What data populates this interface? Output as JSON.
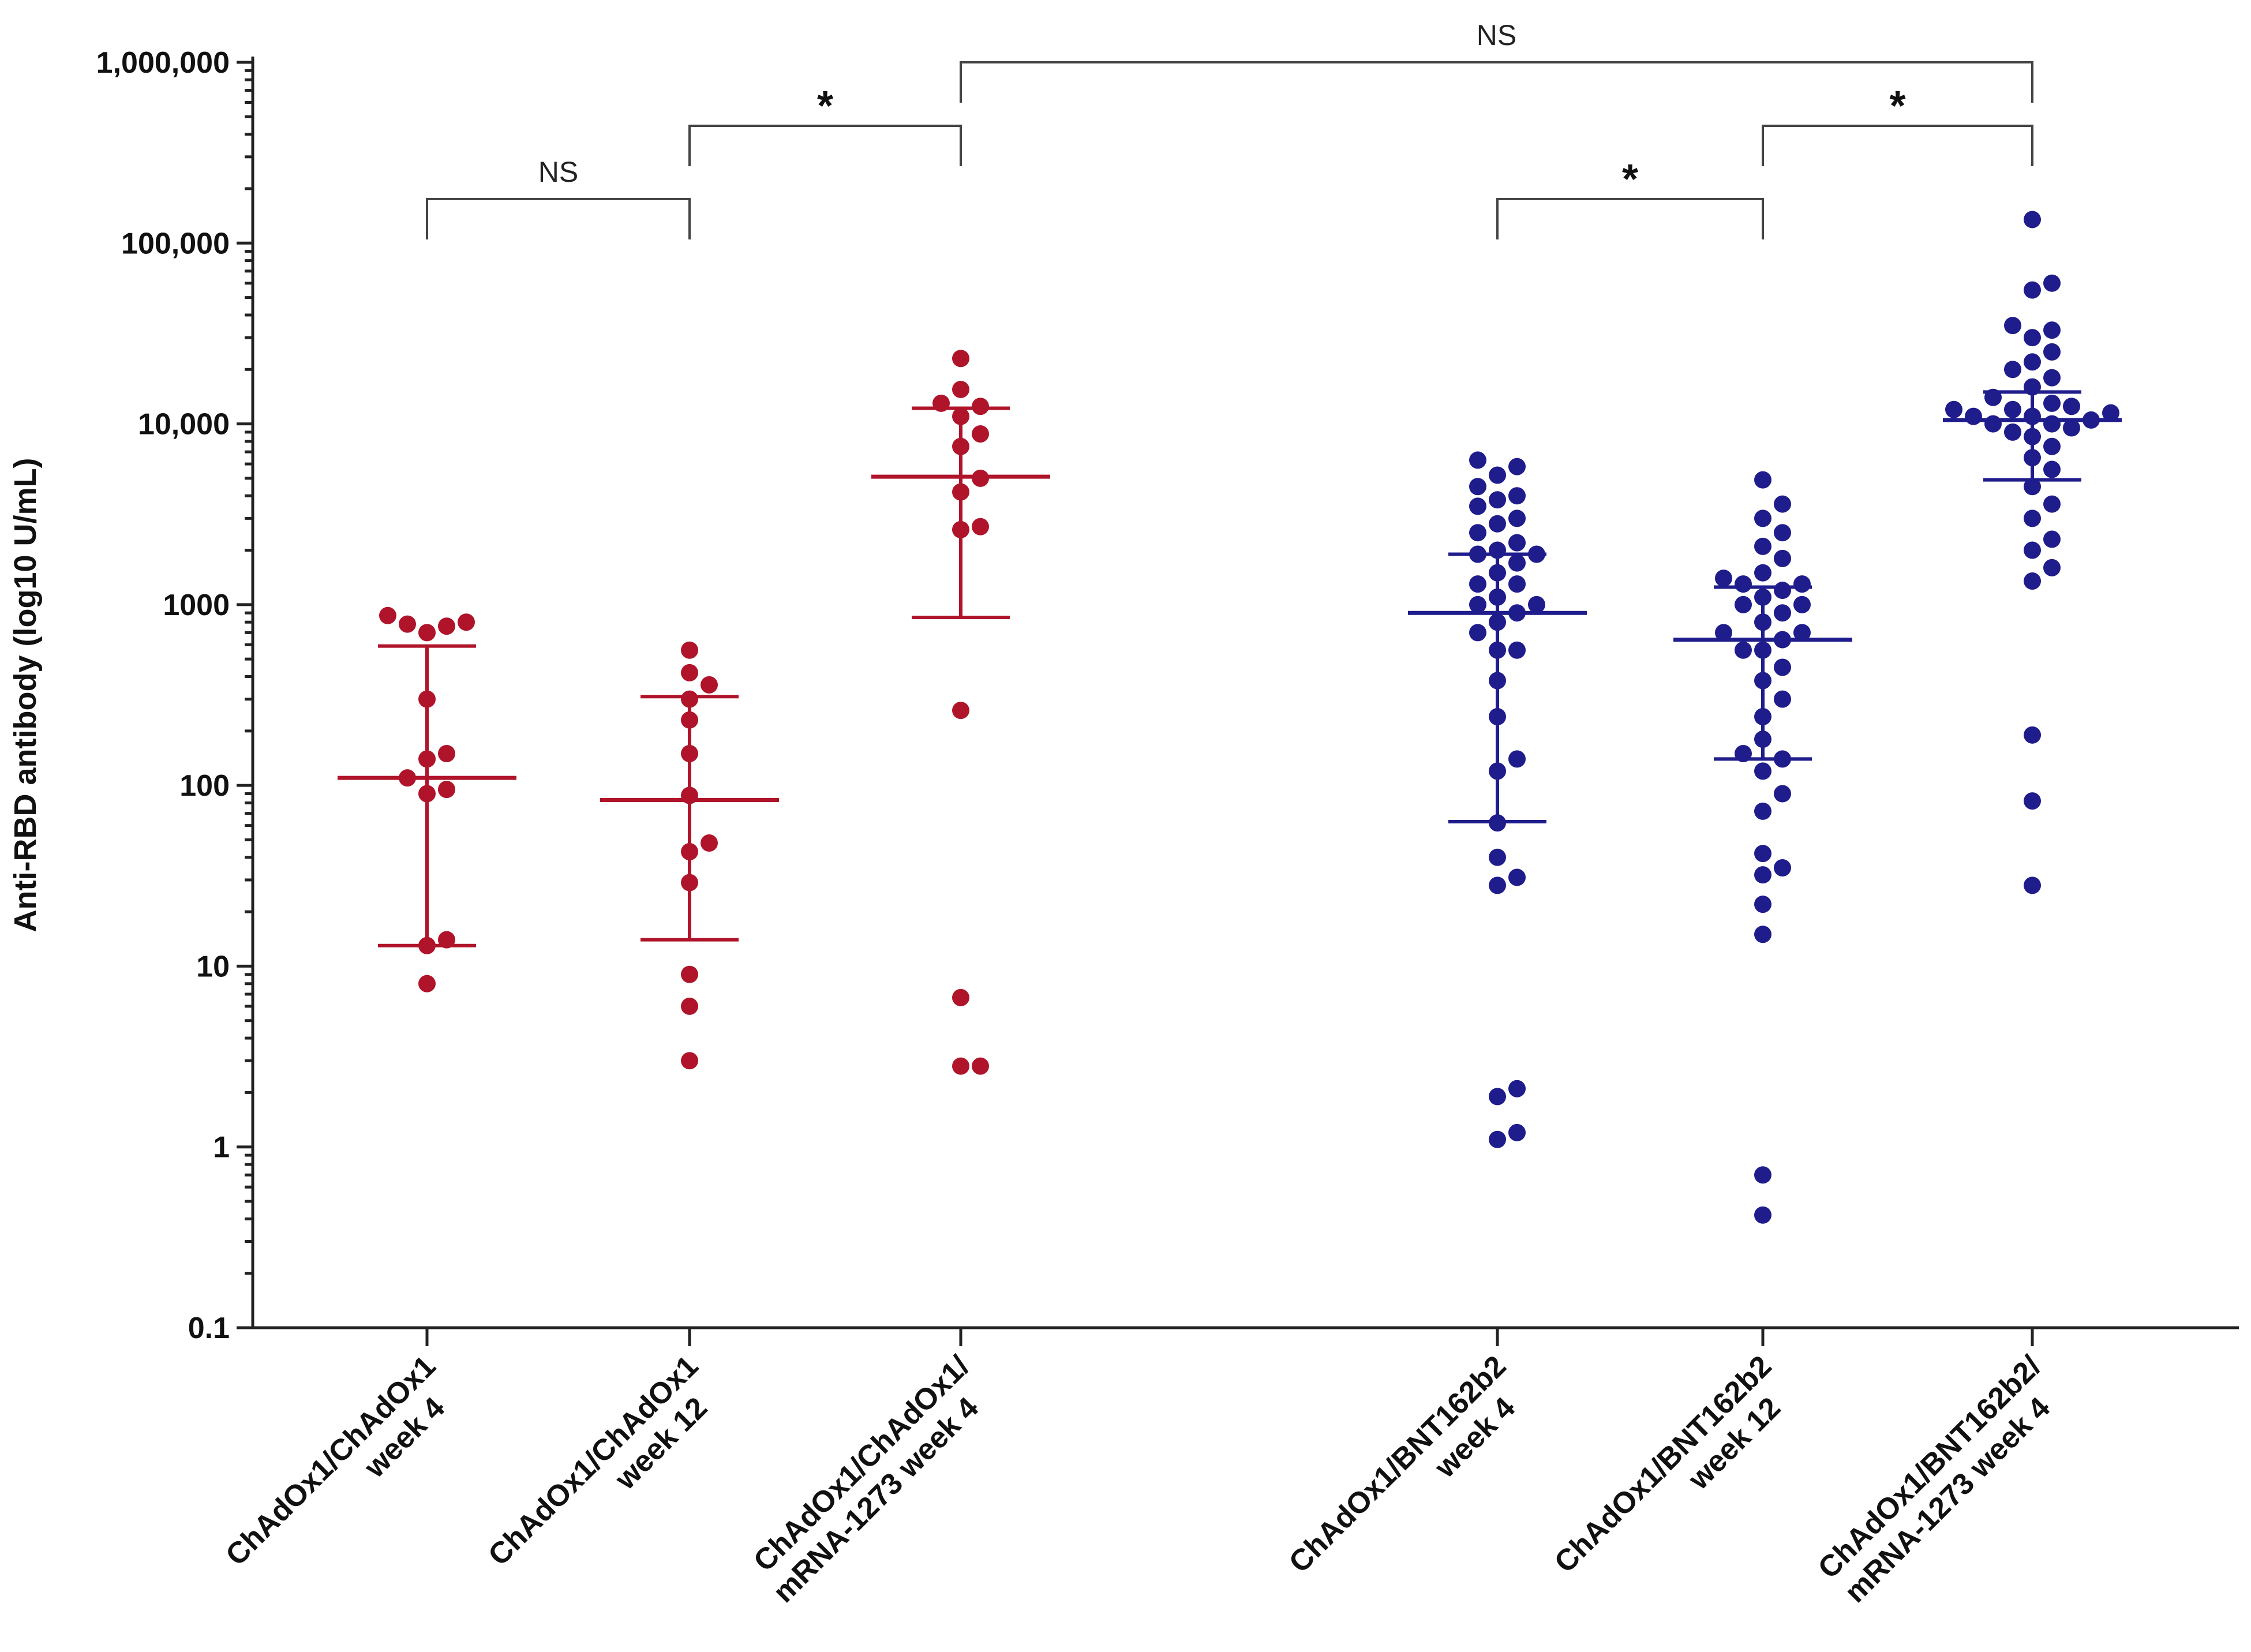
{
  "chart_data": {
    "type": "scatter",
    "ylabel": "Anti-RBD antibody (log10 U/mL)",
    "yscale": "log10",
    "ylim": [
      0.1,
      1000000
    ],
    "yticks": [
      {
        "value": 0.1,
        "label": "0.1"
      },
      {
        "value": 1,
        "label": "1"
      },
      {
        "value": 10,
        "label": "10"
      },
      {
        "value": 100,
        "label": "100"
      },
      {
        "value": 1000,
        "label": "1000"
      },
      {
        "value": 10000,
        "label": "10,000"
      },
      {
        "value": 100000,
        "label": "100,000"
      },
      {
        "value": 1000000,
        "label": "1,000,000"
      }
    ],
    "colors": {
      "red": "#b0142a",
      "blue": "#1f1c8c",
      "axis": "#222222"
    },
    "groups": [
      {
        "label_lines": [
          "ChAdOx1/ChAdOx1",
          "week 4"
        ],
        "color": "red",
        "median": 110,
        "q1": 13,
        "q3": 590,
        "values": [
          8,
          13,
          14,
          90,
          95,
          110,
          140,
          150,
          300,
          700,
          760,
          780,
          800,
          870
        ]
      },
      {
        "label_lines": [
          "ChAdOx1/ChAdOx1",
          "week 12"
        ],
        "color": "red",
        "median": 83,
        "q1": 14,
        "q3": 310,
        "values": [
          3,
          6,
          9,
          29,
          43,
          48,
          88,
          150,
          230,
          300,
          360,
          420,
          560
        ]
      },
      {
        "label_lines": [
          "ChAdOx1/ChAdOx1/",
          "mRNA-1273 week 4"
        ],
        "color": "red",
        "median": 5100,
        "q1": 850,
        "q3": 12200,
        "values": [
          2.8,
          2.8,
          6.7,
          260,
          2600,
          2700,
          4200,
          5000,
          7500,
          8800,
          11000,
          12500,
          13000,
          15500,
          23000
        ]
      },
      {
        "label_lines": [
          "ChAdOx1/BNT162b2",
          "week 4"
        ],
        "color": "blue",
        "median": 900,
        "q1": 63,
        "q3": 1900,
        "values": [
          1.1,
          1.2,
          1.9,
          2.1,
          28,
          31,
          40,
          62,
          120,
          140,
          240,
          380,
          560,
          700,
          800,
          900,
          1000,
          1100,
          1300,
          1500,
          1700,
          1900,
          2000,
          2200,
          2500,
          2800,
          3000,
          3500,
          3800,
          4000,
          4500,
          5200,
          5800,
          6300,
          1000,
          1300,
          560,
          1900
        ]
      },
      {
        "label_lines": [
          "ChAdOx1/BNT162b2",
          "week 12"
        ],
        "color": "blue",
        "median": 640,
        "q1": 140,
        "q3": 1250,
        "values": [
          0.42,
          0.7,
          15,
          22,
          32,
          35,
          42,
          72,
          90,
          120,
          140,
          150,
          180,
          240,
          300,
          380,
          450,
          560,
          640,
          700,
          800,
          900,
          1000,
          1100,
          1200,
          1300,
          1400,
          1500,
          1800,
          2100,
          2500,
          3000,
          3600,
          4900,
          1000,
          1300,
          560,
          700
        ]
      },
      {
        "label_lines": [
          "ChAdOx1/BNT162b2/",
          "mRNA-1273 week 4"
        ],
        "color": "blue",
        "median": 10500,
        "q1": 4900,
        "q3": 15000,
        "values": [
          28,
          82,
          190,
          1350,
          1600,
          2000,
          2300,
          3000,
          3600,
          4500,
          5600,
          6500,
          7500,
          8500,
          9500,
          10000,
          10500,
          11000,
          11500,
          12000,
          12500,
          13000,
          14000,
          16000,
          18000,
          20000,
          22000,
          25000,
          30000,
          33000,
          35000,
          55000,
          60000,
          135000,
          10000,
          11000,
          9000,
          12000
        ]
      }
    ],
    "comparisons": [
      {
        "from": 0,
        "to": 1,
        "label": "NS",
        "level": 0
      },
      {
        "from": 1,
        "to": 2,
        "label": "*",
        "level": 1
      },
      {
        "from": 2,
        "to": 5,
        "label": "NS",
        "level": 2
      },
      {
        "from": 3,
        "to": 4,
        "label": "*",
        "level": 0
      },
      {
        "from": 4,
        "to": 5,
        "label": "*",
        "level": 1
      }
    ]
  }
}
